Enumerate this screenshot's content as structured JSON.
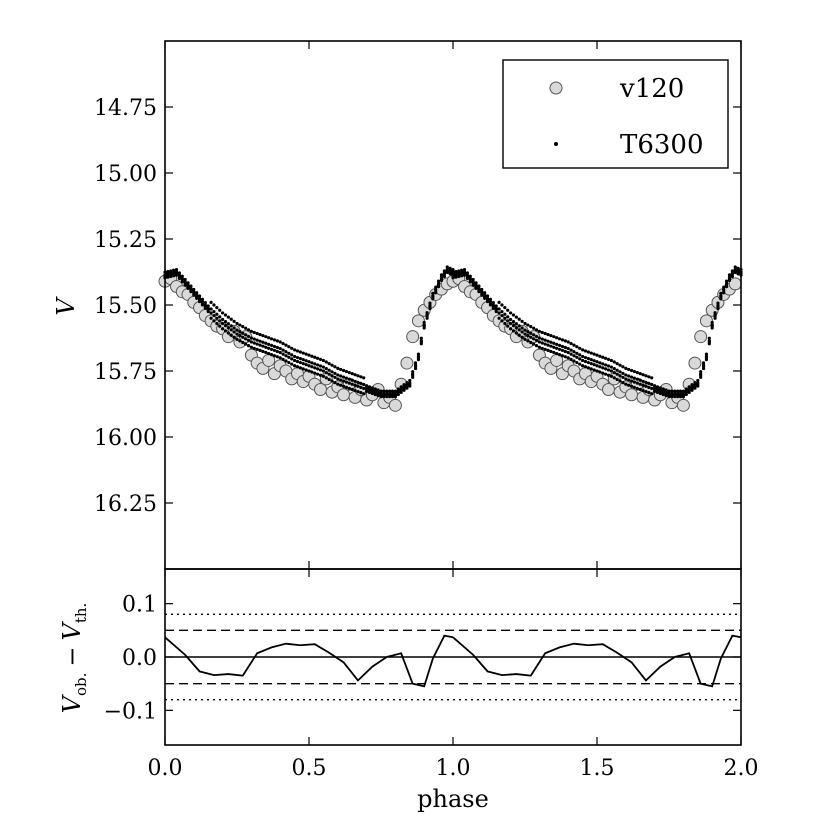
{
  "chart_data": [
    {
      "type": "scatter",
      "panel": "light-curve",
      "ylabel": "V",
      "xlim": [
        0.0,
        2.0
      ],
      "ylim": [
        16.5,
        14.5
      ],
      "y_inverted": true,
      "yticks": [
        "14.75",
        "15.00",
        "15.25",
        "15.50",
        "15.75",
        "16.00",
        "16.25"
      ],
      "legend": {
        "position": "top-right",
        "entries": [
          "v120",
          "T6300"
        ]
      },
      "series": [
        {
          "name": "v120",
          "marker": "circle",
          "color": "#d9d9d9",
          "x": [
            0.0,
            0.02,
            0.04,
            0.06,
            0.08,
            0.1,
            0.12,
            0.14,
            0.16,
            0.18,
            0.2,
            0.22,
            0.24,
            0.26,
            0.28,
            0.3,
            0.32,
            0.34,
            0.36,
            0.38,
            0.4,
            0.42,
            0.44,
            0.46,
            0.48,
            0.5,
            0.52,
            0.54,
            0.56,
            0.58,
            0.6,
            0.62,
            0.64,
            0.66,
            0.68,
            0.7,
            0.72,
            0.74,
            0.76,
            0.78,
            0.8,
            0.82,
            0.84,
            0.86,
            0.88,
            0.9,
            0.92,
            0.94,
            0.96,
            0.98
          ],
          "y": [
            15.41,
            15.4,
            15.43,
            15.45,
            15.46,
            15.49,
            15.51,
            15.54,
            15.56,
            15.58,
            15.59,
            15.62,
            15.6,
            15.64,
            15.62,
            15.69,
            15.72,
            15.74,
            15.71,
            15.76,
            15.73,
            15.75,
            15.78,
            15.76,
            15.79,
            15.77,
            15.8,
            15.82,
            15.78,
            15.83,
            15.81,
            15.84,
            15.8,
            15.85,
            15.82,
            15.86,
            15.84,
            15.82,
            15.87,
            15.85,
            15.88,
            15.8,
            15.72,
            15.62,
            15.56,
            15.52,
            15.49,
            15.46,
            15.44,
            15.42
          ]
        },
        {
          "name": "T6300",
          "marker": "dot",
          "color": "#000000",
          "x": [
            0.0,
            0.04,
            0.08,
            0.12,
            0.16,
            0.2,
            0.25,
            0.3,
            0.35,
            0.4,
            0.45,
            0.5,
            0.55,
            0.6,
            0.65,
            0.7,
            0.75,
            0.8,
            0.85,
            0.88,
            0.9,
            0.93,
            0.96,
            0.98,
            1.0
          ],
          "y": [
            15.39,
            15.38,
            15.43,
            15.48,
            15.53,
            15.57,
            15.61,
            15.64,
            15.66,
            15.68,
            15.71,
            15.73,
            15.75,
            15.78,
            15.8,
            15.82,
            15.84,
            15.84,
            15.8,
            15.7,
            15.58,
            15.47,
            15.4,
            15.37,
            15.38
          ]
        }
      ]
    },
    {
      "type": "line",
      "panel": "residuals",
      "ylabel_main": "V",
      "ylabel_sub1": "ob.",
      "ylabel_minus": "−",
      "ylabel_sub2": "th.",
      "xlabel": "phase",
      "xlim": [
        0.0,
        2.0
      ],
      "ylim": [
        -0.165,
        0.165
      ],
      "xticks": [
        "0.0",
        "0.5",
        "1.0",
        "1.5",
        "2.0"
      ],
      "yticks": [
        "0.1",
        "0.0",
        "−0.1"
      ],
      "ytick_values": [
        0.1,
        0.0,
        -0.1
      ],
      "reference_lines": [
        {
          "y": 0.0,
          "style": "solid"
        },
        {
          "y": 0.05,
          "style": "dashed"
        },
        {
          "y": -0.05,
          "style": "dashed"
        },
        {
          "y": 0.08,
          "style": "dotted"
        },
        {
          "y": -0.08,
          "style": "dotted"
        }
      ],
      "series": [
        {
          "name": "residual",
          "x": [
            0.0,
            0.07,
            0.12,
            0.17,
            0.22,
            0.27,
            0.32,
            0.37,
            0.42,
            0.47,
            0.52,
            0.57,
            0.62,
            0.67,
            0.72,
            0.77,
            0.82,
            0.86,
            0.9,
            0.93,
            0.97,
            1.0
          ],
          "y": [
            0.037,
            0.004,
            -0.027,
            -0.034,
            -0.032,
            -0.035,
            0.007,
            0.018,
            0.025,
            0.022,
            0.024,
            0.008,
            -0.01,
            -0.044,
            -0.018,
            0.0,
            0.007,
            -0.05,
            -0.055,
            -0.003,
            0.04,
            0.037
          ]
        }
      ]
    }
  ]
}
